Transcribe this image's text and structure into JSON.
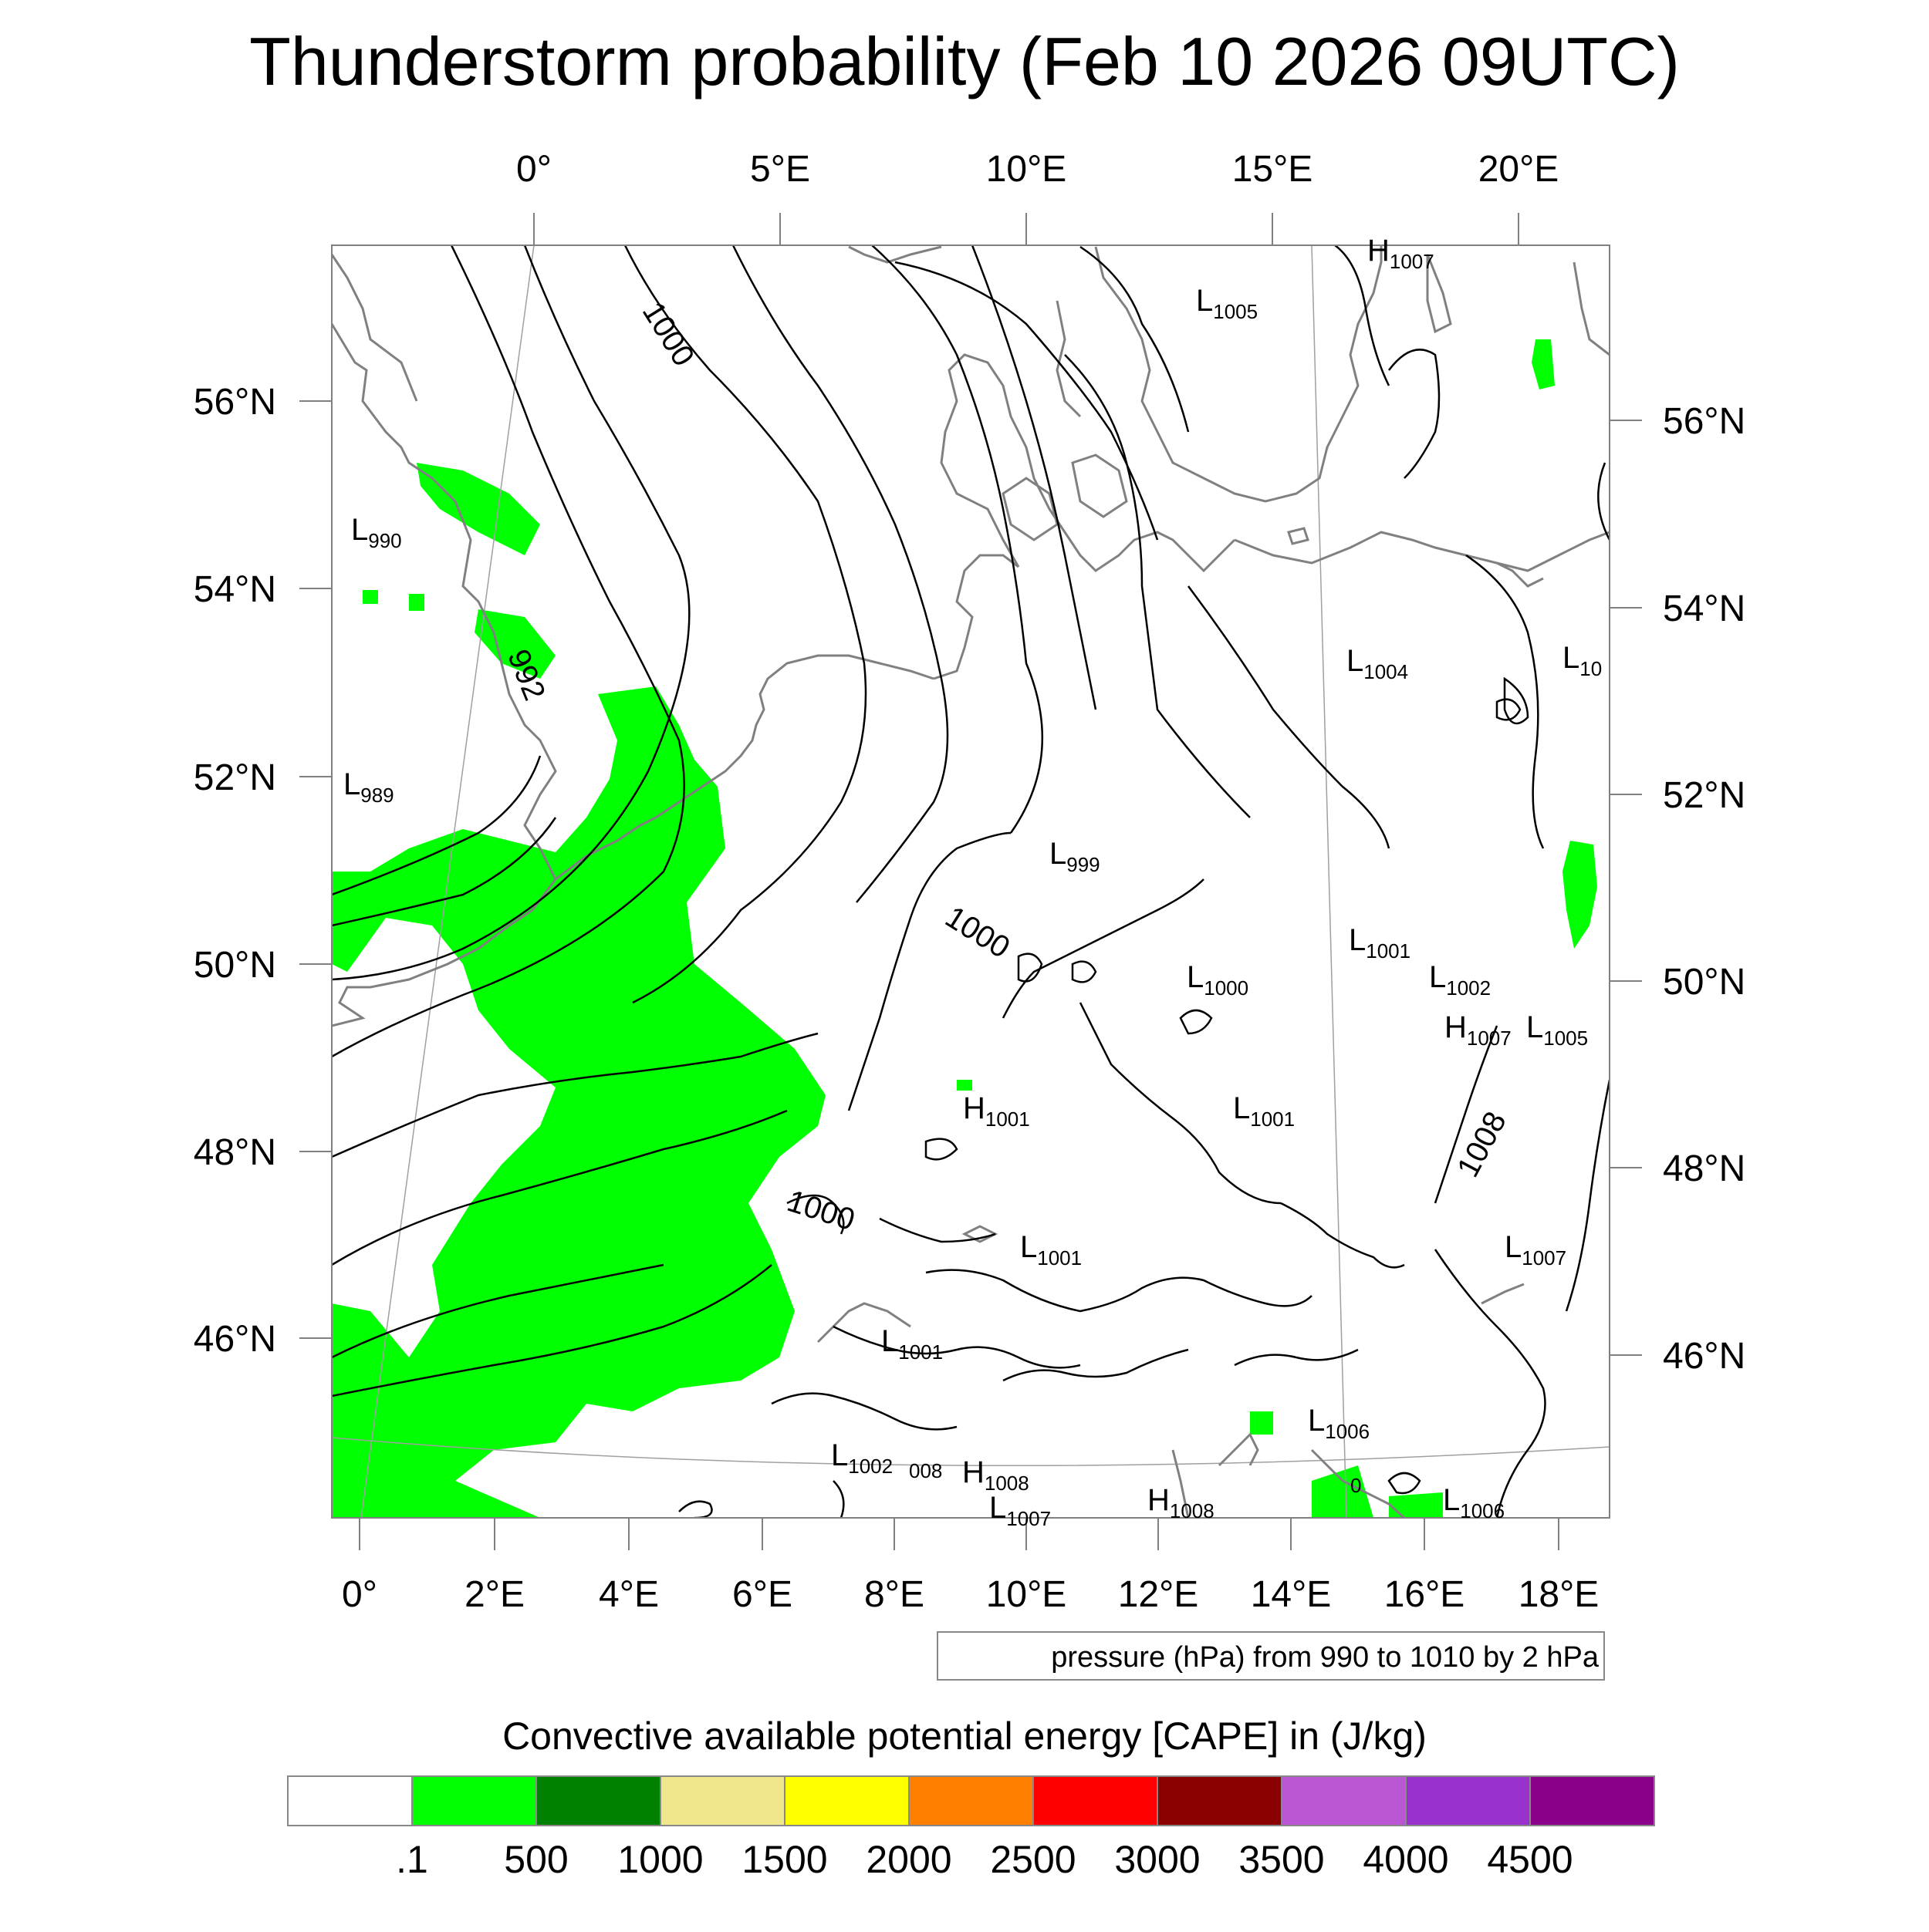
{
  "title": "Thunderstorm probability (Feb 10 2026 09UTC)",
  "map": {
    "top_lon_labels": [
      "0°",
      "5°E",
      "10°E",
      "15°E",
      "20°E"
    ],
    "bottom_lon_labels": [
      "0°",
      "2°E",
      "4°E",
      "6°E",
      "8°E",
      "10°E",
      "12°E",
      "14°E",
      "16°E",
      "18°E"
    ],
    "left_lat_labels": [
      "56°N",
      "54°N",
      "52°N",
      "50°N",
      "48°N",
      "46°N"
    ],
    "right_lat_labels": [
      "56°N",
      "54°N",
      "52°N",
      "50°N",
      "48°N",
      "46°N"
    ],
    "contour_labels": [
      "1000",
      "992",
      "1000",
      "1000",
      "1008"
    ],
    "pressure_centers": [
      {
        "t": "H",
        "v": "1007"
      },
      {
        "t": "L",
        "v": "1005"
      },
      {
        "t": "L",
        "v": "990"
      },
      {
        "t": "L",
        "v": "989"
      },
      {
        "t": "L",
        "v": "1004"
      },
      {
        "t": "L",
        "v": "10"
      },
      {
        "t": "L",
        "v": "999"
      },
      {
        "t": "L",
        "v": "1001"
      },
      {
        "t": "L",
        "v": "1000"
      },
      {
        "t": "L",
        "v": "1002"
      },
      {
        "t": "H",
        "v": "1007"
      },
      {
        "t": "L",
        "v": "1005"
      },
      {
        "t": "H",
        "v": "1001"
      },
      {
        "t": "L",
        "v": "1001"
      },
      {
        "t": "L",
        "v": "1001"
      },
      {
        "t": "L",
        "v": "1007"
      },
      {
        "t": "L",
        "v": "1001"
      },
      {
        "t": "L",
        "v": "1006"
      },
      {
        "t": "L",
        "v": "1002"
      },
      {
        "t": "",
        "v": "008"
      },
      {
        "t": "H",
        "v": "1008"
      },
      {
        "t": "L",
        "v": "1007"
      },
      {
        "t": "H",
        "v": "1008"
      },
      {
        "t": "L",
        "v": "1006"
      },
      {
        "t": "",
        "v": "0"
      }
    ],
    "contour_info": "pressure (hPa) from 990 to 1010 by 2 hPa"
  },
  "colorbar": {
    "title": "Convective available potential energy [CAPE] in (J/kg)",
    "colors": [
      "#ffffff",
      "#00ff00",
      "#008000",
      "#f0e68c",
      "#ffff00",
      "#ff8000",
      "#ff0000",
      "#8b0000",
      "#ba55d3",
      "#9932cc",
      "#8b008b"
    ],
    "labels": [
      ".1",
      "500",
      "1000",
      "1500",
      "2000",
      "2500",
      "3000",
      "3500",
      "4000",
      "4500"
    ]
  },
  "colors": {
    "cape_low": "#00ff00",
    "coast": "#808080",
    "isobar": "#000000"
  }
}
